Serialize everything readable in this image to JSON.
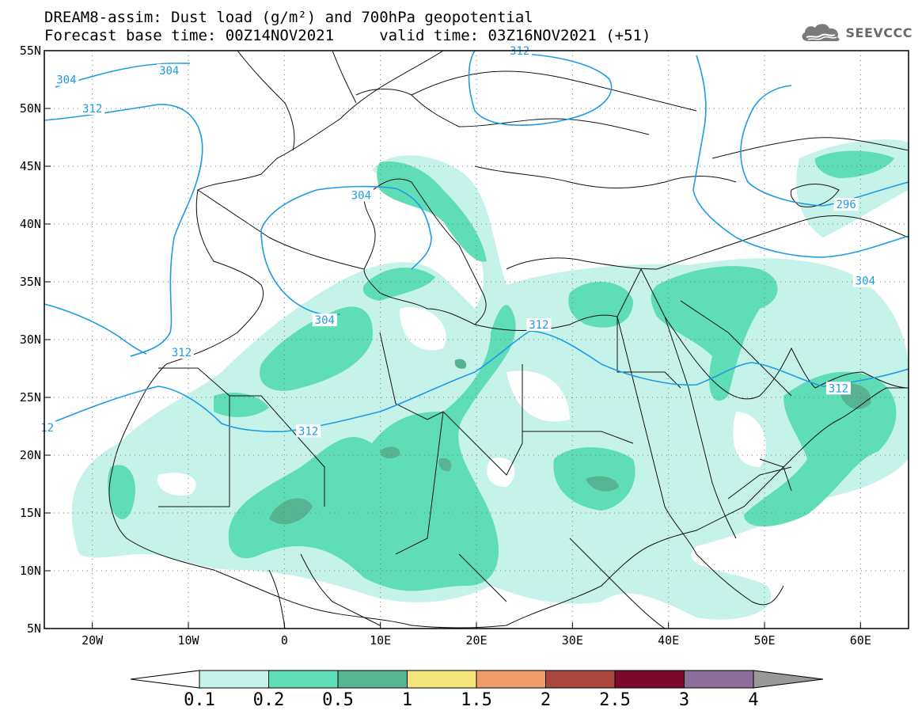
{
  "title": {
    "line1": "DREAM8-assim: Dust load (g/m²) and 700hPa geopotential",
    "line2": "Forecast base time: 00Z14NOV2021     valid time: 03Z16NOV2021 (+51)"
  },
  "logo": {
    "text": "SEEVCCC",
    "icon": "cloud-icon"
  },
  "map": {
    "lon_range": [
      -25,
      65
    ],
    "lat_range": [
      5,
      55
    ],
    "lon_ticks": [
      "20W",
      "10W",
      "0",
      "10E",
      "20E",
      "30E",
      "40E",
      "50E",
      "60E"
    ],
    "lon_tick_values": [
      -20,
      -10,
      0,
      10,
      20,
      30,
      40,
      50,
      60
    ],
    "lat_ticks": [
      "5N",
      "10N",
      "15N",
      "20N",
      "25N",
      "30N",
      "35N",
      "40N",
      "45N",
      "50N",
      "55N"
    ],
    "lat_tick_values": [
      5,
      10,
      15,
      20,
      25,
      30,
      35,
      40,
      45,
      50,
      55
    ],
    "gridlines": "dotted",
    "contour_color": "#1e9be6",
    "contour_labels": [
      {
        "text": "304",
        "lon": -12,
        "lat": 53.3
      },
      {
        "text": "304",
        "lon": -22.7,
        "lat": 52.5
      },
      {
        "text": "312",
        "lon": -20,
        "lat": 50
      },
      {
        "text": "312",
        "lon": 24.5,
        "lat": 55
      },
      {
        "text": "304",
        "lon": 8,
        "lat": 42.5
      },
      {
        "text": "304",
        "lon": 4.2,
        "lat": 31.7
      },
      {
        "text": "312",
        "lon": -10.7,
        "lat": 28.9
      },
      {
        "text": "312",
        "lon": 26.5,
        "lat": 31.3
      },
      {
        "text": "312",
        "lon": 2.5,
        "lat": 22.1
      },
      {
        "text": "12",
        "lon": -24.7,
        "lat": 22.4
      },
      {
        "text": "296",
        "lon": 58.5,
        "lat": 41.7
      },
      {
        "text": "304",
        "lon": 60.5,
        "lat": 35.1
      },
      {
        "text": "312",
        "lon": 57.7,
        "lat": 25.8
      }
    ]
  },
  "colorbar": {
    "labels": [
      "0.1",
      "0.2",
      "0.5",
      "1",
      "1.5",
      "2",
      "2.5",
      "3",
      "4"
    ],
    "colors": [
      "#ffffff",
      "#c5f3ea",
      "#5fddb6",
      "#56b493",
      "#f4e57a",
      "#ef9c6b",
      "#a9483f",
      "#7a0b2d",
      "#8d6f9b",
      "#999999"
    ]
  }
}
